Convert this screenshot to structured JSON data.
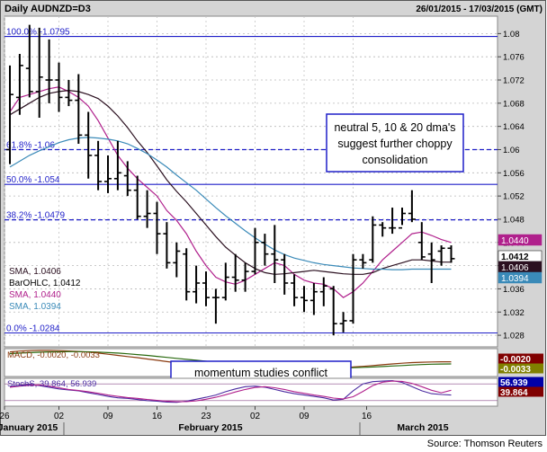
{
  "header": {
    "symbol": "Daily AUDNZD=D3",
    "date_range": "26/01/2015 - 17/03/2015 (GMT)"
  },
  "source": "Source: Thomson Reuters",
  "colors": {
    "background": "#ffffff",
    "panel": "#d4d4d4",
    "fib_line": "#1f1fc8",
    "sma_5": "#b0208c",
    "sma_10": "#2b1020",
    "sma_20": "#3a8ab8",
    "bars": "#000000",
    "macd": "#8a3a10",
    "macd_signal": "#2a6a10",
    "stoch_k": "#4a2aa0",
    "stoch_d": "#b0208c",
    "badge_macd": "#800000",
    "badge_signal": "#808000",
    "badge_stoch_k": "#0000a8",
    "badge_stoch_d": "#800000"
  },
  "annotations": {
    "sma_note": "neutral 5, 10 & 20 dma's suggest further choppy consolidation",
    "momentum_note": "momentum studies conflict"
  },
  "legend": [
    {
      "label": "SMA, 1.0406",
      "color": "#2b1020"
    },
    {
      "label": "BarOHLC, 1.0412",
      "color": "#000000"
    },
    {
      "label": "SMA, 1.0440",
      "color": "#b0208c"
    },
    {
      "label": "SMA, 1.0394",
      "color": "#3a8ab8"
    }
  ],
  "indicator_labels": {
    "macd": "MACD, -0.0020, -0.0033",
    "stoch": "StochS, 39.864, 56.939"
  },
  "right_badges": [
    {
      "text": "1.0440",
      "value": 1.044,
      "bg": "#b0208c",
      "fg": "#ffffff"
    },
    {
      "text": "1.0412",
      "value": 1.0412,
      "bg": "#ffffff",
      "fg": "#000000"
    },
    {
      "text": "1.0406",
      "value": 1.0406,
      "bg": "#2b1020",
      "fg": "#ffffff"
    },
    {
      "text": "1.0394",
      "value": 1.0394,
      "bg": "#3a8ab8",
      "fg": "#ffffff"
    }
  ],
  "indicator_badges": [
    {
      "text": "-0.0020",
      "panel": "macd",
      "bg": "#800000",
      "fg": "#ffffff"
    },
    {
      "text": "-0.0033",
      "panel": "macd",
      "bg": "#808000",
      "fg": "#ffffff"
    },
    {
      "text": "56.939",
      "panel": "stoch",
      "bg": "#0000a8",
      "fg": "#ffffff"
    },
    {
      "text": "39.864",
      "panel": "stoch",
      "bg": "#800000",
      "fg": "#ffffff"
    }
  ],
  "chart_data": {
    "type": "ohlc",
    "ylim": [
      1.026,
      1.083
    ],
    "y_ticks": [
      "1.028",
      "1.032",
      "1.036",
      "1.04",
      "1.044",
      "1.048",
      "1.052",
      "1.056",
      "1.06",
      "1.064",
      "1.068",
      "1.072",
      "1.076",
      "1.08"
    ],
    "y_tick_values": [
      1.028,
      1.032,
      1.036,
      1.04,
      1.044,
      1.048,
      1.052,
      1.056,
      1.06,
      1.064,
      1.068,
      1.072,
      1.076,
      1.08
    ],
    "x_ticks": [
      "26",
      "02",
      "09",
      "16",
      "23",
      "02",
      "09",
      "16"
    ],
    "months": [
      "January 2015",
      "February 2015",
      "March 2015"
    ],
    "fib_levels": [
      {
        "label": "100.0% -1.0795",
        "value": 1.0795
      },
      {
        "label": "61.8% -1.06",
        "value": 1.06
      },
      {
        "label": "50.0% -1.054",
        "value": 1.054
      },
      {
        "label": "38.2% -1.0479",
        "value": 1.0479
      },
      {
        "label": "0.0% -1.0284",
        "value": 1.0284
      }
    ],
    "bars": [
      {
        "o": 1.06,
        "h": 1.0745,
        "l": 1.0575,
        "c": 1.0695
      },
      {
        "o": 1.069,
        "h": 1.0765,
        "l": 1.066,
        "c": 1.0745
      },
      {
        "o": 1.074,
        "h": 1.0815,
        "l": 1.069,
        "c": 1.07
      },
      {
        "o": 1.07,
        "h": 1.081,
        "l": 1.0655,
        "c": 1.0725
      },
      {
        "o": 1.072,
        "h": 1.079,
        "l": 1.068,
        "c": 1.072
      },
      {
        "o": 1.072,
        "h": 1.075,
        "l": 1.0665,
        "c": 1.069
      },
      {
        "o": 1.069,
        "h": 1.072,
        "l": 1.0675,
        "c": 1.0685
      },
      {
        "o": 1.0685,
        "h": 1.073,
        "l": 1.061,
        "c": 1.0625
      },
      {
        "o": 1.0625,
        "h": 1.0665,
        "l": 1.055,
        "c": 1.059
      },
      {
        "o": 1.059,
        "h": 1.0615,
        "l": 1.053,
        "c": 1.0545
      },
      {
        "o": 1.0545,
        "h": 1.059,
        "l": 1.0525,
        "c": 1.055
      },
      {
        "o": 1.055,
        "h": 1.0615,
        "l": 1.053,
        "c": 1.056
      },
      {
        "o": 1.0555,
        "h": 1.058,
        "l": 1.052,
        "c": 1.053
      },
      {
        "o": 1.053,
        "h": 1.0555,
        "l": 1.048,
        "c": 1.0485
      },
      {
        "o": 1.0485,
        "h": 1.053,
        "l": 1.0465,
        "c": 1.049
      },
      {
        "o": 1.049,
        "h": 1.051,
        "l": 1.042,
        "c": 1.0455
      },
      {
        "o": 1.0455,
        "h": 1.0475,
        "l": 1.0395,
        "c": 1.0405
      },
      {
        "o": 1.0405,
        "h": 1.044,
        "l": 1.038,
        "c": 1.0425
      },
      {
        "o": 1.042,
        "h": 1.043,
        "l": 1.034,
        "c": 1.0355
      },
      {
        "o": 1.0355,
        "h": 1.04,
        "l": 1.0335,
        "c": 1.037
      },
      {
        "o": 1.037,
        "h": 1.039,
        "l": 1.033,
        "c": 1.0345
      },
      {
        "o": 1.0345,
        "h": 1.036,
        "l": 1.03,
        "c": 1.0345
      },
      {
        "o": 1.0345,
        "h": 1.0405,
        "l": 1.034,
        "c": 1.038
      },
      {
        "o": 1.038,
        "h": 1.042,
        "l": 1.0355,
        "c": 1.0375
      },
      {
        "o": 1.0375,
        "h": 1.0405,
        "l": 1.0355,
        "c": 1.039
      },
      {
        "o": 1.039,
        "h": 1.0465,
        "l": 1.0385,
        "c": 1.044
      },
      {
        "o": 1.044,
        "h": 1.0455,
        "l": 1.04,
        "c": 1.042
      },
      {
        "o": 1.042,
        "h": 1.047,
        "l": 1.037,
        "c": 1.041
      },
      {
        "o": 1.041,
        "h": 1.042,
        "l": 1.035,
        "c": 1.037
      },
      {
        "o": 1.037,
        "h": 1.0385,
        "l": 1.033,
        "c": 1.0345
      },
      {
        "o": 1.0345,
        "h": 1.0365,
        "l": 1.032,
        "c": 1.034
      },
      {
        "o": 1.034,
        "h": 1.037,
        "l": 1.0315,
        "c": 1.0355
      },
      {
        "o": 1.0355,
        "h": 1.038,
        "l": 1.033,
        "c": 1.0365
      },
      {
        "o": 1.036,
        "h": 1.0365,
        "l": 1.028,
        "c": 1.03
      },
      {
        "o": 1.03,
        "h": 1.032,
        "l": 1.0285,
        "c": 1.0305
      },
      {
        "o": 1.0305,
        "h": 1.042,
        "l": 1.03,
        "c": 1.041
      },
      {
        "o": 1.041,
        "h": 1.042,
        "l": 1.0395,
        "c": 1.0405
      },
      {
        "o": 1.041,
        "h": 1.0485,
        "l": 1.0405,
        "c": 1.047
      },
      {
        "o": 1.047,
        "h": 1.0475,
        "l": 1.045,
        "c": 1.0465
      },
      {
        "o": 1.0465,
        "h": 1.05,
        "l": 1.0455,
        "c": 1.0465
      },
      {
        "o": 1.0465,
        "h": 1.05,
        "l": 1.047,
        "c": 1.049
      },
      {
        "o": 1.049,
        "h": 1.053,
        "l": 1.0475,
        "c": 1.048
      },
      {
        "o": 1.044,
        "h": 1.0475,
        "l": 1.041,
        "c": 1.0415
      },
      {
        "o": 1.042,
        "h": 1.044,
        "l": 1.037,
        "c": 1.041
      },
      {
        "o": 1.0425,
        "h": 1.0435,
        "l": 1.04,
        "c": 1.043
      },
      {
        "o": 1.043,
        "h": 1.0435,
        "l": 1.0405,
        "c": 1.0412
      }
    ],
    "series": [
      {
        "name": "SMA, 1.0440",
        "values": [
          1.0665,
          1.069,
          1.0695,
          1.07,
          1.0705,
          1.0708,
          1.07,
          1.069,
          1.0675,
          1.065,
          1.062,
          1.059,
          1.0568,
          1.055,
          1.0535,
          1.052,
          1.0495,
          1.0478,
          1.0455,
          1.0425,
          1.04,
          1.038,
          1.0372,
          1.0368,
          1.0375,
          1.0385,
          1.0395,
          1.0405,
          1.04,
          1.0385,
          1.0375,
          1.037,
          1.0368,
          1.036,
          1.0345,
          1.0355,
          1.037,
          1.039,
          1.041,
          1.0425,
          1.044,
          1.0455,
          1.0458,
          1.0452,
          1.0445,
          1.044
        ]
      },
      {
        "name": "SMA, 1.0406",
        "values": [
          1.066,
          1.067,
          1.068,
          1.069,
          1.0697,
          1.07,
          1.0702,
          1.07,
          1.0695,
          1.0688,
          1.0675,
          1.0658,
          1.0638,
          1.0615,
          1.0595,
          1.0572,
          1.0548,
          1.0528,
          1.051,
          1.049,
          1.047,
          1.045,
          1.0432,
          1.0418,
          1.0405,
          1.0395,
          1.0388,
          1.0385,
          1.0386,
          1.0388,
          1.039,
          1.0392,
          1.039,
          1.0388,
          1.0386,
          1.0385,
          1.0385,
          1.0388,
          1.0395,
          1.04,
          1.0405,
          1.041,
          1.041,
          1.0408,
          1.0406,
          1.0406
        ]
      },
      {
        "name": "SMA, 1.0394",
        "values": [
          1.057,
          1.058,
          1.059,
          1.0598,
          1.0605,
          1.0612,
          1.0617,
          1.062,
          1.0621,
          1.062,
          1.0618,
          1.0615,
          1.061,
          1.0602,
          1.0593,
          1.0582,
          1.057,
          1.0556,
          1.0543,
          1.053,
          1.0515,
          1.05,
          1.0486,
          1.0473,
          1.046,
          1.0448,
          1.0437,
          1.0427,
          1.0419,
          1.0413,
          1.0409,
          1.0405,
          1.0402,
          1.04,
          1.0398,
          1.0396,
          1.0395,
          1.0394,
          1.0394,
          1.0393,
          1.0393,
          1.0394,
          1.0394,
          1.0394,
          1.0394,
          1.0394
        ]
      }
    ],
    "macd": {
      "ylim": [
        -0.011,
        0.006
      ],
      "macd": [
        0.004,
        0.0045,
        0.0048,
        0.0049,
        0.0049,
        0.0048,
        0.0046,
        0.0043,
        0.0039,
        0.0033,
        0.0026,
        0.0019,
        0.0012,
        0.0005,
        -0.0003,
        -0.0011,
        -0.0019,
        -0.0026,
        -0.0033,
        -0.004,
        -0.0046,
        -0.0052,
        -0.0056,
        -0.006,
        -0.0063,
        -0.0064,
        -0.0064,
        -0.0063,
        -0.0062,
        -0.0061,
        -0.0059,
        -0.0057,
        -0.0055,
        -0.0054,
        -0.0054,
        -0.0052,
        -0.0048,
        -0.0043,
        -0.0038,
        -0.0033,
        -0.0029,
        -0.0025,
        -0.0023,
        -0.0021,
        -0.002,
        -0.002
      ],
      "signal": [
        0.003,
        0.0033,
        0.0036,
        0.0038,
        0.004,
        0.0041,
        0.0042,
        0.0042,
        0.0041,
        0.0039,
        0.0036,
        0.0033,
        0.0029,
        0.0024,
        0.0019,
        0.0013,
        0.0007,
        0.0001,
        -0.0005,
        -0.0011,
        -0.0017,
        -0.0023,
        -0.0028,
        -0.0033,
        -0.0038,
        -0.0042,
        -0.0046,
        -0.0049,
        -0.0052,
        -0.0054,
        -0.0056,
        -0.0057,
        -0.0057,
        -0.0057,
        -0.0057,
        -0.0056,
        -0.0054,
        -0.0052,
        -0.0049,
        -0.0046,
        -0.0043,
        -0.004,
        -0.0037,
        -0.0035,
        -0.0034,
        -0.0033
      ]
    },
    "stoch": {
      "ylim": [
        0,
        100
      ],
      "k": [
        70,
        75,
        78,
        74,
        68,
        62,
        58,
        55,
        48,
        42,
        35,
        30,
        28,
        24,
        20,
        18,
        15,
        14,
        18,
        25,
        32,
        40,
        52,
        62,
        70,
        72,
        68,
        60,
        52,
        45,
        40,
        35,
        30,
        22,
        25,
        55,
        80,
        88,
        90,
        92,
        85,
        70,
        55,
        45,
        42,
        39.864
      ],
      "d": [
        68,
        72,
        75,
        76,
        72,
        66,
        60,
        56,
        52,
        46,
        40,
        35,
        31,
        28,
        24,
        21,
        18,
        16,
        16,
        19,
        25,
        32,
        41,
        51,
        60,
        67,
        70,
        66,
        60,
        52,
        46,
        40,
        35,
        29,
        26,
        34,
        53,
        74,
        86,
        90,
        89,
        82,
        70,
        57,
        48,
        56.939
      ]
    }
  }
}
